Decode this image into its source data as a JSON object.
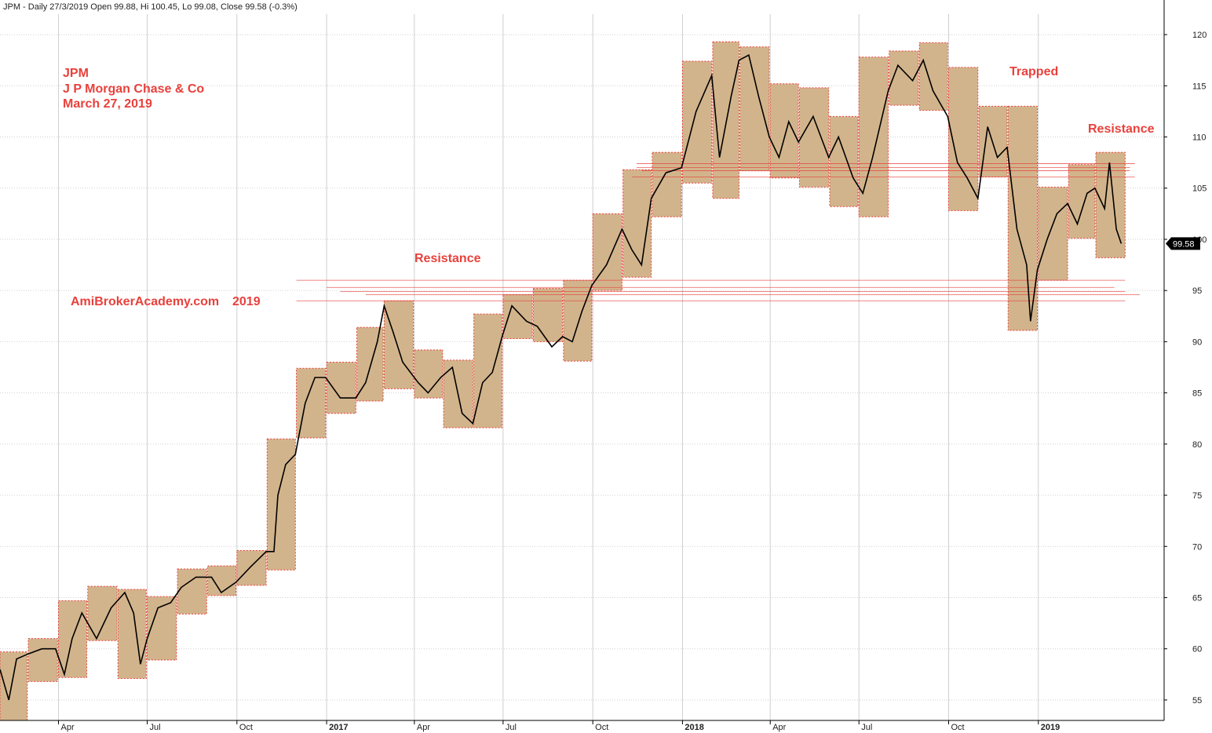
{
  "header": {
    "text": "JPM - Daily 27/3/2019 Open 99.88, Hi 100.45, Lo 99.08, Close 99.58 (-0.3%)"
  },
  "annotations": {
    "ticker": "JPM",
    "company": "J P Morgan Chase & Co",
    "date": "March 27, 2019",
    "site": "AmiBrokerAcademy.com",
    "year": "2019",
    "resistance_left": "Resistance",
    "trapped": "Trapped",
    "resistance_right": "Resistance"
  },
  "last_price_label": "99.58",
  "colors": {
    "box_fill": "#d2b48c",
    "box_border": "#e8413c",
    "line": "#e8413c",
    "price": "#000000",
    "grid": "#cfcfcf"
  },
  "chart_data": {
    "type": "line",
    "ylim": [
      53,
      122
    ],
    "y_ticks": [
      55,
      60,
      65,
      70,
      75,
      80,
      85,
      90,
      95,
      100,
      105,
      110,
      115,
      120
    ],
    "x_ticks": [
      {
        "label": "Apr",
        "date": "2016-04-01",
        "bold": false
      },
      {
        "label": "Jul",
        "date": "2016-07-01",
        "bold": false
      },
      {
        "label": "Oct",
        "date": "2016-10-01",
        "bold": false
      },
      {
        "label": "2017",
        "date": "2017-01-01",
        "bold": true
      },
      {
        "label": "Apr",
        "date": "2017-04-01",
        "bold": false
      },
      {
        "label": "Jul",
        "date": "2017-07-01",
        "bold": false
      },
      {
        "label": "Oct",
        "date": "2017-10-01",
        "bold": false
      },
      {
        "label": "2018",
        "date": "2018-01-01",
        "bold": true
      },
      {
        "label": "Apr",
        "date": "2018-04-01",
        "bold": false
      },
      {
        "label": "Jul",
        "date": "2018-07-01",
        "bold": false
      },
      {
        "label": "Oct",
        "date": "2018-10-01",
        "bold": false
      },
      {
        "label": "2019",
        "date": "2019-01-01",
        "bold": true
      }
    ],
    "x_range": [
      "2016-02-01",
      "2019-05-10"
    ],
    "price": [
      [
        "2016-02-01",
        58
      ],
      [
        "2016-02-10",
        55
      ],
      [
        "2016-02-18",
        59
      ],
      [
        "2016-03-01",
        59.5
      ],
      [
        "2016-03-15",
        60
      ],
      [
        "2016-03-29",
        60
      ],
      [
        "2016-04-07",
        57.5
      ],
      [
        "2016-04-15",
        61
      ],
      [
        "2016-04-25",
        63.5
      ],
      [
        "2016-05-10",
        61
      ],
      [
        "2016-05-25",
        64
      ],
      [
        "2016-06-08",
        65.5
      ],
      [
        "2016-06-17",
        63.5
      ],
      [
        "2016-06-24",
        58.5
      ],
      [
        "2016-07-01",
        61
      ],
      [
        "2016-07-12",
        64
      ],
      [
        "2016-07-25",
        64.5
      ],
      [
        "2016-08-05",
        66
      ],
      [
        "2016-08-20",
        67
      ],
      [
        "2016-09-05",
        67
      ],
      [
        "2016-09-15",
        65.5
      ],
      [
        "2016-09-30",
        66.5
      ],
      [
        "2016-10-15",
        68
      ],
      [
        "2016-10-31",
        69.5
      ],
      [
        "2016-11-08",
        69.5
      ],
      [
        "2016-11-12",
        75
      ],
      [
        "2016-11-20",
        78
      ],
      [
        "2016-11-30",
        79
      ],
      [
        "2016-12-10",
        84
      ],
      [
        "2016-12-20",
        86.5
      ],
      [
        "2016-12-31",
        86.5
      ],
      [
        "2017-01-15",
        84.5
      ],
      [
        "2017-01-31",
        84.5
      ],
      [
        "2017-02-10",
        86
      ],
      [
        "2017-02-22",
        90
      ],
      [
        "2017-03-01",
        93.5
      ],
      [
        "2017-03-10",
        91
      ],
      [
        "2017-03-20",
        88
      ],
      [
        "2017-04-05",
        86
      ],
      [
        "2017-04-15",
        85
      ],
      [
        "2017-04-28",
        86.5
      ],
      [
        "2017-05-10",
        87.5
      ],
      [
        "2017-05-20",
        83
      ],
      [
        "2017-05-31",
        82
      ],
      [
        "2017-06-10",
        86
      ],
      [
        "2017-06-20",
        87
      ],
      [
        "2017-06-30",
        90.5
      ],
      [
        "2017-07-10",
        93.5
      ],
      [
        "2017-07-25",
        92
      ],
      [
        "2017-08-05",
        91.5
      ],
      [
        "2017-08-20",
        89.5
      ],
      [
        "2017-08-31",
        90.5
      ],
      [
        "2017-09-10",
        90
      ],
      [
        "2017-09-20",
        93
      ],
      [
        "2017-09-30",
        95.5
      ],
      [
        "2017-10-15",
        97.5
      ],
      [
        "2017-10-31",
        101
      ],
      [
        "2017-11-10",
        99
      ],
      [
        "2017-11-20",
        97.5
      ],
      [
        "2017-11-30",
        104
      ],
      [
        "2017-12-15",
        106.5
      ],
      [
        "2017-12-31",
        107
      ],
      [
        "2018-01-15",
        112.5
      ],
      [
        "2018-01-31",
        116
      ],
      [
        "2018-02-08",
        108
      ],
      [
        "2018-02-20",
        114
      ],
      [
        "2018-02-28",
        117.5
      ],
      [
        "2018-03-10",
        118
      ],
      [
        "2018-03-20",
        114
      ],
      [
        "2018-03-31",
        110
      ],
      [
        "2018-04-10",
        108
      ],
      [
        "2018-04-20",
        111.5
      ],
      [
        "2018-04-30",
        109.5
      ],
      [
        "2018-05-15",
        112
      ],
      [
        "2018-05-31",
        108
      ],
      [
        "2018-06-10",
        110
      ],
      [
        "2018-06-25",
        106
      ],
      [
        "2018-07-05",
        104.5
      ],
      [
        "2018-07-15",
        108
      ],
      [
        "2018-07-31",
        114.5
      ],
      [
        "2018-08-10",
        117
      ],
      [
        "2018-08-25",
        115.5
      ],
      [
        "2018-09-05",
        117.5
      ],
      [
        "2018-09-15",
        114.5
      ],
      [
        "2018-09-30",
        112
      ],
      [
        "2018-10-10",
        107.5
      ],
      [
        "2018-10-20",
        106
      ],
      [
        "2018-10-31",
        104
      ],
      [
        "2018-11-10",
        111
      ],
      [
        "2018-11-20",
        108
      ],
      [
        "2018-11-30",
        109
      ],
      [
        "2018-12-10",
        101
      ],
      [
        "2018-12-20",
        97.5
      ],
      [
        "2018-12-24",
        92
      ],
      [
        "2018-12-31",
        97
      ],
      [
        "2019-01-10",
        100
      ],
      [
        "2019-01-20",
        102.5
      ],
      [
        "2019-01-31",
        103.5
      ],
      [
        "2019-02-10",
        101.5
      ],
      [
        "2019-02-20",
        104.5
      ],
      [
        "2019-02-28",
        105
      ],
      [
        "2019-03-10",
        103
      ],
      [
        "2019-03-15",
        107.5
      ],
      [
        "2019-03-22",
        101
      ],
      [
        "2019-03-27",
        99.58
      ]
    ],
    "monthly_boxes": [
      {
        "start": "2016-02-01",
        "end": "2016-02-29",
        "low": 53,
        "high": 59.7
      },
      {
        "start": "2016-03-01",
        "end": "2016-03-31",
        "low": 56.8,
        "high": 61
      },
      {
        "start": "2016-04-01",
        "end": "2016-04-30",
        "low": 57.2,
        "high": 64.7
      },
      {
        "start": "2016-05-01",
        "end": "2016-05-31",
        "low": 60.8,
        "high": 66.1
      },
      {
        "start": "2016-06-01",
        "end": "2016-06-30",
        "low": 57.1,
        "high": 65.8
      },
      {
        "start": "2016-07-01",
        "end": "2016-07-31",
        "low": 58.9,
        "high": 65.1
      },
      {
        "start": "2016-08-01",
        "end": "2016-08-31",
        "low": 63.4,
        "high": 67.8
      },
      {
        "start": "2016-09-01",
        "end": "2016-09-30",
        "low": 65.2,
        "high": 68.1
      },
      {
        "start": "2016-10-01",
        "end": "2016-10-31",
        "low": 66.2,
        "high": 69.6
      },
      {
        "start": "2016-11-01",
        "end": "2016-11-30",
        "low": 67.7,
        "high": 80.5
      },
      {
        "start": "2016-12-01",
        "end": "2016-12-31",
        "low": 80.6,
        "high": 87.4
      },
      {
        "start": "2017-01-01",
        "end": "2017-01-31",
        "low": 83,
        "high": 88
      },
      {
        "start": "2017-02-01",
        "end": "2017-02-28",
        "low": 84.2,
        "high": 91.4
      },
      {
        "start": "2017-03-01",
        "end": "2017-03-31",
        "low": 85.4,
        "high": 94
      },
      {
        "start": "2017-04-01",
        "end": "2017-04-30",
        "low": 84.5,
        "high": 89.2
      },
      {
        "start": "2017-05-01",
        "end": "2017-05-31",
        "low": 81.6,
        "high": 88.2
      },
      {
        "start": "2017-06-01",
        "end": "2017-06-30",
        "low": 81.6,
        "high": 92.7
      },
      {
        "start": "2017-07-01",
        "end": "2017-07-31",
        "low": 90.3,
        "high": 94.6
      },
      {
        "start": "2017-08-01",
        "end": "2017-08-31",
        "low": 90,
        "high": 95.2
      },
      {
        "start": "2017-09-01",
        "end": "2017-09-30",
        "low": 88.1,
        "high": 96
      },
      {
        "start": "2017-10-01",
        "end": "2017-10-31",
        "low": 95,
        "high": 102.5
      },
      {
        "start": "2017-11-01",
        "end": "2017-11-30",
        "low": 96.3,
        "high": 106.8
      },
      {
        "start": "2017-12-01",
        "end": "2017-12-31",
        "low": 102.2,
        "high": 108.5
      },
      {
        "start": "2018-01-01",
        "end": "2018-01-31",
        "low": 105.5,
        "high": 117.4
      },
      {
        "start": "2018-02-01",
        "end": "2018-02-28",
        "low": 104,
        "high": 119.3
      },
      {
        "start": "2018-03-01",
        "end": "2018-03-31",
        "low": 106.7,
        "high": 118.8
      },
      {
        "start": "2018-04-01",
        "end": "2018-04-30",
        "low": 106,
        "high": 115.2
      },
      {
        "start": "2018-05-01",
        "end": "2018-05-31",
        "low": 105.1,
        "high": 114.8
      },
      {
        "start": "2018-06-01",
        "end": "2018-06-30",
        "low": 103.2,
        "high": 112
      },
      {
        "start": "2018-07-01",
        "end": "2018-07-31",
        "low": 102.2,
        "high": 117.8
      },
      {
        "start": "2018-08-01",
        "end": "2018-08-31",
        "low": 113.1,
        "high": 118.4
      },
      {
        "start": "2018-09-01",
        "end": "2018-09-30",
        "low": 112.6,
        "high": 119.2
      },
      {
        "start": "2018-10-01",
        "end": "2018-10-31",
        "low": 102.8,
        "high": 116.8
      },
      {
        "start": "2018-11-01",
        "end": "2018-11-30",
        "low": 106.1,
        "high": 113
      },
      {
        "start": "2018-12-01",
        "end": "2018-12-31",
        "low": 91.1,
        "high": 113
      },
      {
        "start": "2019-01-01",
        "end": "2019-01-31",
        "low": 96,
        "high": 105.1
      },
      {
        "start": "2019-02-01",
        "end": "2019-02-28",
        "low": 100.1,
        "high": 107.3
      },
      {
        "start": "2019-03-01",
        "end": "2019-03-31",
        "low": 98.2,
        "high": 108.5
      }
    ],
    "resistance_lines": [
      {
        "start": "2016-12-01",
        "end": "2019-03-31",
        "y": 96.0
      },
      {
        "start": "2017-01-01",
        "end": "2019-03-20",
        "y": 95.3
      },
      {
        "start": "2017-01-15",
        "end": "2019-03-31",
        "y": 94.9
      },
      {
        "start": "2017-02-10",
        "end": "2019-04-15",
        "y": 94.6
      },
      {
        "start": "2016-12-01",
        "end": "2019-03-31",
        "y": 94.0
      },
      {
        "start": "2017-11-15",
        "end": "2019-04-10",
        "y": 107.4
      },
      {
        "start": "2017-11-15",
        "end": "2019-04-05",
        "y": 107.0
      },
      {
        "start": "2017-11-20",
        "end": "2019-04-05",
        "y": 106.7
      },
      {
        "start": "2017-11-10",
        "end": "2019-04-10",
        "y": 106.1
      }
    ]
  }
}
